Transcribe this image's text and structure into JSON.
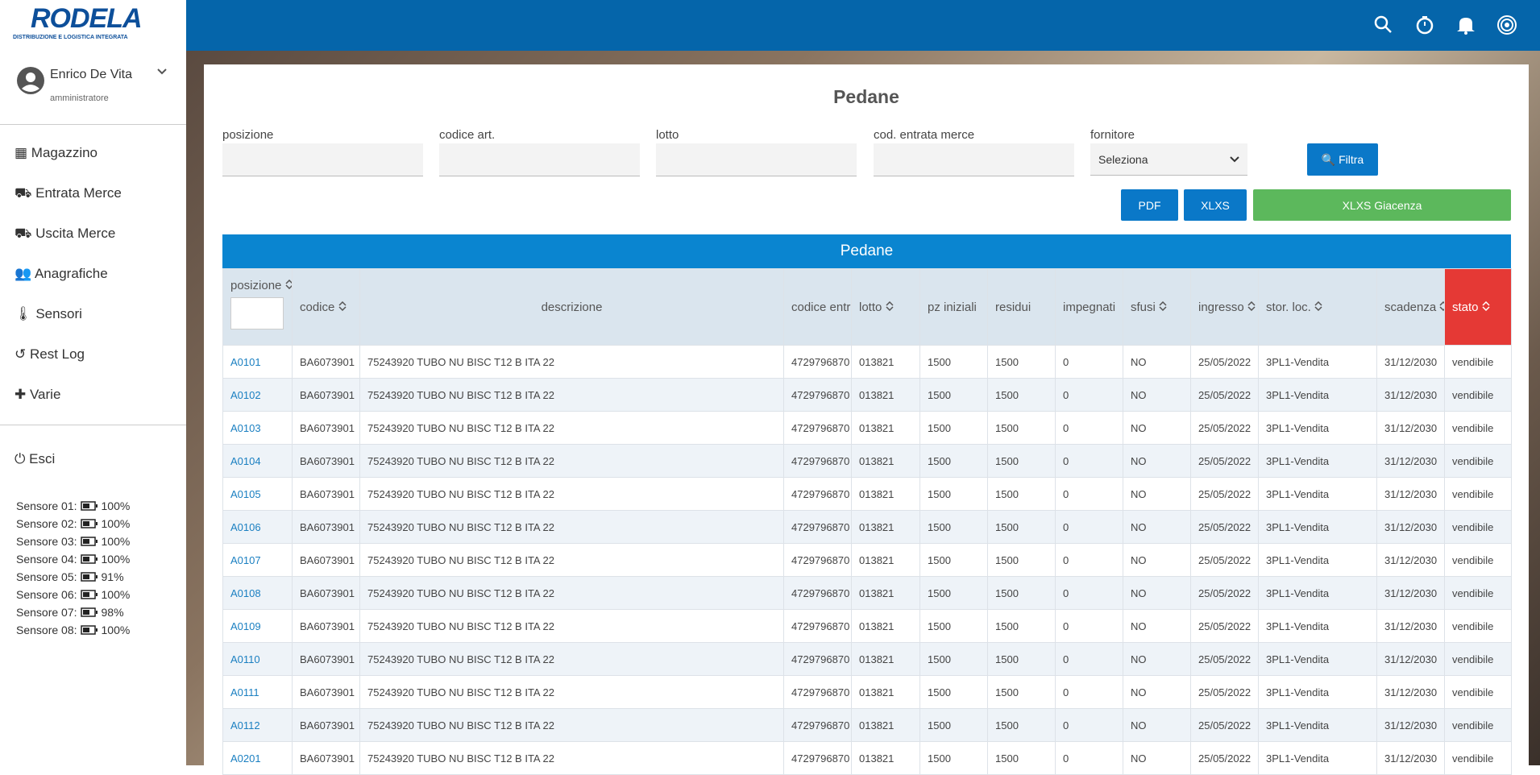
{
  "header": {
    "logo": "RODELA",
    "logo_tagline": "DISTRIBUZIONE E LOGISTICA INTEGRATA"
  },
  "user": {
    "name": "Enrico De Vita",
    "role": "amministratore"
  },
  "menu": [
    "Magazzino",
    "Entrata Merce",
    "Uscita Merce",
    "Anagrafiche",
    "Sensori",
    "Rest Log",
    "Varie"
  ],
  "logout": "Esci",
  "sensors": [
    {
      "label": "Sensore 01:",
      "battery": "100%"
    },
    {
      "label": "Sensore 02:",
      "battery": "100%"
    },
    {
      "label": "Sensore 03:",
      "battery": "100%"
    },
    {
      "label": "Sensore 04:",
      "battery": "100%"
    },
    {
      "label": "Sensore 05:",
      "battery": "91%"
    },
    {
      "label": "Sensore 06:",
      "battery": "100%"
    },
    {
      "label": "Sensore 07:",
      "battery": "98%"
    },
    {
      "label": "Sensore 08:",
      "battery": "100%"
    }
  ],
  "page": {
    "title": "Pedane",
    "filters": [
      "posizione",
      "codice art.",
      "lotto",
      "cod. entrata merce",
      "fornitore"
    ],
    "fornitore_placeholder": "Seleziona",
    "filter_button": "Filtra",
    "export_buttons": [
      "PDF",
      "XLXS",
      "XLXS Giacenza"
    ]
  },
  "table": {
    "title": "Pedane",
    "columns": [
      "posizione",
      "codice",
      "descrizione",
      "codice entr",
      "lotto",
      "pz iniziali",
      "residui",
      "impegnati",
      "sfusi",
      "ingresso",
      "stor. loc.",
      "scadenza",
      "stato"
    ],
    "rows": [
      [
        "A0101",
        "BA6073901",
        "75243920 TUBO NU BISC T12 B ITA 22",
        "4729796870",
        "013821",
        "1500",
        "1500",
        "0",
        "NO",
        "25/05/2022",
        "3PL1-Vendita",
        "31/12/2030",
        "vendibile"
      ],
      [
        "A0102",
        "BA6073901",
        "75243920 TUBO NU BISC T12 B ITA 22",
        "4729796870",
        "013821",
        "1500",
        "1500",
        "0",
        "NO",
        "25/05/2022",
        "3PL1-Vendita",
        "31/12/2030",
        "vendibile"
      ],
      [
        "A0103",
        "BA6073901",
        "75243920 TUBO NU BISC T12 B ITA 22",
        "4729796870",
        "013821",
        "1500",
        "1500",
        "0",
        "NO",
        "25/05/2022",
        "3PL1-Vendita",
        "31/12/2030",
        "vendibile"
      ],
      [
        "A0104",
        "BA6073901",
        "75243920 TUBO NU BISC T12 B ITA 22",
        "4729796870",
        "013821",
        "1500",
        "1500",
        "0",
        "NO",
        "25/05/2022",
        "3PL1-Vendita",
        "31/12/2030",
        "vendibile"
      ],
      [
        "A0105",
        "BA6073901",
        "75243920 TUBO NU BISC T12 B ITA 22",
        "4729796870",
        "013821",
        "1500",
        "1500",
        "0",
        "NO",
        "25/05/2022",
        "3PL1-Vendita",
        "31/12/2030",
        "vendibile"
      ],
      [
        "A0106",
        "BA6073901",
        "75243920 TUBO NU BISC T12 B ITA 22",
        "4729796870",
        "013821",
        "1500",
        "1500",
        "0",
        "NO",
        "25/05/2022",
        "3PL1-Vendita",
        "31/12/2030",
        "vendibile"
      ],
      [
        "A0107",
        "BA6073901",
        "75243920 TUBO NU BISC T12 B ITA 22",
        "4729796870",
        "013821",
        "1500",
        "1500",
        "0",
        "NO",
        "25/05/2022",
        "3PL1-Vendita",
        "31/12/2030",
        "vendibile"
      ],
      [
        "A0108",
        "BA6073901",
        "75243920 TUBO NU BISC T12 B ITA 22",
        "4729796870",
        "013821",
        "1500",
        "1500",
        "0",
        "NO",
        "25/05/2022",
        "3PL1-Vendita",
        "31/12/2030",
        "vendibile"
      ],
      [
        "A0109",
        "BA6073901",
        "75243920 TUBO NU BISC T12 B ITA 22",
        "4729796870",
        "013821",
        "1500",
        "1500",
        "0",
        "NO",
        "25/05/2022",
        "3PL1-Vendita",
        "31/12/2030",
        "vendibile"
      ],
      [
        "A0110",
        "BA6073901",
        "75243920 TUBO NU BISC T12 B ITA 22",
        "4729796870",
        "013821",
        "1500",
        "1500",
        "0",
        "NO",
        "25/05/2022",
        "3PL1-Vendita",
        "31/12/2030",
        "vendibile"
      ],
      [
        "A0111",
        "BA6073901",
        "75243920 TUBO NU BISC T12 B ITA 22",
        "4729796870",
        "013821",
        "1500",
        "1500",
        "0",
        "NO",
        "25/05/2022",
        "3PL1-Vendita",
        "31/12/2030",
        "vendibile"
      ],
      [
        "A0112",
        "BA6073901",
        "75243920 TUBO NU BISC T12 B ITA 22",
        "4729796870",
        "013821",
        "1500",
        "1500",
        "0",
        "NO",
        "25/05/2022",
        "3PL1-Vendita",
        "31/12/2030",
        "vendibile"
      ],
      [
        "A0201",
        "BA6073901",
        "75243920 TUBO NU BISC T12 B ITA 22",
        "4729796870",
        "013821",
        "1500",
        "1500",
        "0",
        "NO",
        "25/05/2022",
        "3PL1-Vendita",
        "31/12/2030",
        "vendibile"
      ]
    ]
  }
}
